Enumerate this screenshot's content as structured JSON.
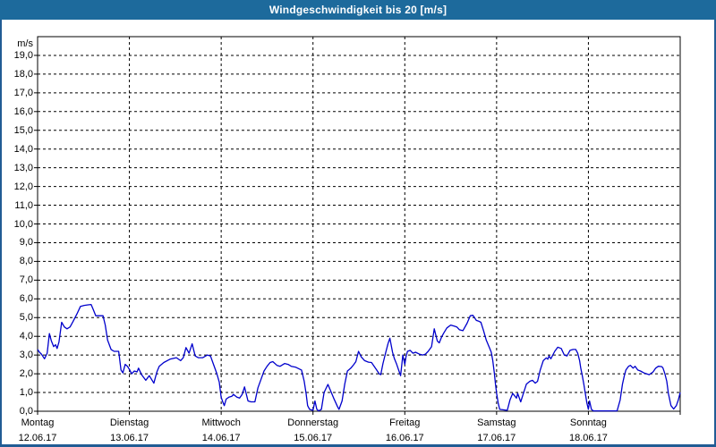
{
  "window": {
    "title": "Windgeschwindigkeit bis 20 [m/s]"
  },
  "colors": {
    "title_bar_bg": "#1d6a9c",
    "title_text": "#ffffff",
    "frame_border": "#215c94",
    "plot_bg": "#ffffff",
    "plot_border": "#000000",
    "grid": "#000000",
    "tick": "#000000",
    "label_text": "#000000",
    "line": "#0000cc"
  },
  "chart_data": {
    "type": "line",
    "title": "Windgeschwindigkeit bis 20 [m/s]",
    "ylabel": "m/s",
    "ylim": [
      0,
      20
    ],
    "ytick_values": [
      0,
      1,
      2,
      3,
      4,
      5,
      6,
      7,
      8,
      9,
      10,
      11,
      12,
      13,
      14,
      15,
      16,
      17,
      18,
      19
    ],
    "ytick_labels": [
      "0,0",
      "1,0",
      "2,0",
      "3,0",
      "4,0",
      "5,0",
      "6,0",
      "7,0",
      "8,0",
      "9,0",
      "10,0",
      "11,0",
      "12,0",
      "13,0",
      "14,0",
      "15,0",
      "16,0",
      "17,0",
      "18,0",
      "19,0"
    ],
    "xlim_hours": [
      0,
      168
    ],
    "hours_per_day": 24,
    "days": [
      {
        "weekday": "Montag",
        "date": "12.06.17"
      },
      {
        "weekday": "Dienstag",
        "date": "13.06.17"
      },
      {
        "weekday": "Mittwoch",
        "date": "14.06.17"
      },
      {
        "weekday": "Donnerstag",
        "date": "15.06.17"
      },
      {
        "weekday": "Freitag",
        "date": "16.06.17"
      },
      {
        "weekday": "Samstag",
        "date": "17.06.17"
      },
      {
        "weekday": "Sonntag",
        "date": "18.06.17"
      }
    ],
    "grid": {
      "style": "dashed",
      "horizontal_step": 1,
      "vertical": "day-boundaries"
    },
    "legend": "none",
    "series": [
      {
        "name": "Windgeschwindigkeit",
        "unit": "m/s",
        "x_unit": "hours since Montag 00:00",
        "points": [
          [
            0,
            3.3
          ],
          [
            0.5,
            3.15
          ],
          [
            1,
            3.05
          ],
          [
            1.8,
            2.8
          ],
          [
            2.5,
            3.1
          ],
          [
            3.1,
            4.15
          ],
          [
            3.6,
            3.75
          ],
          [
            4.2,
            3.45
          ],
          [
            4.7,
            3.55
          ],
          [
            5.1,
            3.35
          ],
          [
            5.6,
            3.7
          ],
          [
            6.3,
            4.75
          ],
          [
            7,
            4.5
          ],
          [
            7.7,
            4.4
          ],
          [
            8.5,
            4.5
          ],
          [
            9.3,
            4.8
          ],
          [
            10.3,
            5.2
          ],
          [
            11.2,
            5.6
          ],
          [
            12.2,
            5.65
          ],
          [
            13.2,
            5.68
          ],
          [
            14,
            5.7
          ],
          [
            14.5,
            5.45
          ],
          [
            15.2,
            5.1
          ],
          [
            16.2,
            5.1
          ],
          [
            17.1,
            5.1
          ],
          [
            17.7,
            4.6
          ],
          [
            18.3,
            3.8
          ],
          [
            19.2,
            3.3
          ],
          [
            20,
            3.2
          ],
          [
            21.2,
            3.2
          ],
          [
            21.8,
            2.2
          ],
          [
            22.3,
            2.05
          ],
          [
            22.9,
            2.5
          ],
          [
            23.5,
            2.4
          ],
          [
            24.1,
            2.2
          ],
          [
            24.6,
            2.0
          ],
          [
            25.3,
            2.15
          ],
          [
            26,
            2.1
          ],
          [
            26.4,
            2.3
          ],
          [
            27.2,
            1.95
          ],
          [
            28.3,
            1.65
          ],
          [
            29.2,
            1.9
          ],
          [
            30.4,
            1.5
          ],
          [
            31.2,
            2.1
          ],
          [
            31.8,
            2.4
          ],
          [
            33,
            2.6
          ],
          [
            34.6,
            2.78
          ],
          [
            35.5,
            2.82
          ],
          [
            36.3,
            2.86
          ],
          [
            37.4,
            2.7
          ],
          [
            38.1,
            2.86
          ],
          [
            38.8,
            3.4
          ],
          [
            39.6,
            3.1
          ],
          [
            40.4,
            3.6
          ],
          [
            41.2,
            2.95
          ],
          [
            42,
            2.86
          ],
          [
            43.2,
            2.86
          ],
          [
            44.4,
            3.0
          ],
          [
            45.2,
            2.95
          ],
          [
            45.9,
            2.55
          ],
          [
            46.8,
            2.05
          ],
          [
            47.5,
            1.55
          ],
          [
            48,
            0.75
          ],
          [
            48.4,
            0.5
          ],
          [
            48.8,
            0.3
          ],
          [
            49.3,
            0.65
          ],
          [
            50,
            0.75
          ],
          [
            50.8,
            0.8
          ],
          [
            51.2,
            0.9
          ],
          [
            52.1,
            0.75
          ],
          [
            52.8,
            0.7
          ],
          [
            53.5,
            0.9
          ],
          [
            54.1,
            1.3
          ],
          [
            55,
            0.55
          ],
          [
            55.8,
            0.5
          ],
          [
            56.8,
            0.5
          ],
          [
            57.6,
            1.25
          ],
          [
            58.5,
            1.75
          ],
          [
            59.2,
            2.15
          ],
          [
            60,
            2.4
          ],
          [
            60.8,
            2.6
          ],
          [
            61.5,
            2.65
          ],
          [
            62.6,
            2.45
          ],
          [
            63.4,
            2.4
          ],
          [
            64.6,
            2.55
          ],
          [
            65.5,
            2.5
          ],
          [
            66.3,
            2.4
          ],
          [
            67.5,
            2.35
          ],
          [
            69,
            2.2
          ],
          [
            69.7,
            1.6
          ],
          [
            70.2,
            0.95
          ],
          [
            70.6,
            0.3
          ],
          [
            71.1,
            0.1
          ],
          [
            72,
            0.05
          ],
          [
            72.5,
            0.55
          ],
          [
            73,
            0.1
          ],
          [
            73.5,
            0.02
          ],
          [
            74.2,
            0.1
          ],
          [
            74.9,
            1.0
          ],
          [
            75.9,
            1.43
          ],
          [
            77.4,
            0.7
          ],
          [
            78.4,
            0.25
          ],
          [
            78.8,
            0.1
          ],
          [
            79.6,
            0.55
          ],
          [
            80.3,
            1.45
          ],
          [
            81,
            2.15
          ],
          [
            81.9,
            2.3
          ],
          [
            82.7,
            2.5
          ],
          [
            83.2,
            2.65
          ],
          [
            83.9,
            3.2
          ],
          [
            84.6,
            2.9
          ],
          [
            85.5,
            2.7
          ],
          [
            86.5,
            2.62
          ],
          [
            87.3,
            2.6
          ],
          [
            88.5,
            2.25
          ],
          [
            89.3,
            2.0
          ],
          [
            89.7,
            1.95
          ],
          [
            90.3,
            2.55
          ],
          [
            90.9,
            3.05
          ],
          [
            91.6,
            3.6
          ],
          [
            92.1,
            3.9
          ],
          [
            92.8,
            3.15
          ],
          [
            93.3,
            2.8
          ],
          [
            93.8,
            2.55
          ],
          [
            94.4,
            2.2
          ],
          [
            94.9,
            1.9
          ],
          [
            95.5,
            3.0
          ],
          [
            96,
            2.5
          ],
          [
            96.3,
            2.9
          ],
          [
            96.7,
            3.2
          ],
          [
            97.4,
            3.25
          ],
          [
            98.1,
            3.1
          ],
          [
            98.8,
            3.15
          ],
          [
            99.8,
            3.05
          ],
          [
            100.7,
            3.0
          ],
          [
            101.4,
            3.05
          ],
          [
            102.1,
            3.2
          ],
          [
            103,
            3.45
          ],
          [
            103.7,
            4.4
          ],
          [
            104.5,
            3.75
          ],
          [
            105,
            3.65
          ],
          [
            105.6,
            3.95
          ],
          [
            106.1,
            4.15
          ],
          [
            107,
            4.45
          ],
          [
            108,
            4.6
          ],
          [
            108.9,
            4.55
          ],
          [
            109.6,
            4.5
          ],
          [
            110.3,
            4.35
          ],
          [
            111.2,
            4.3
          ],
          [
            112.3,
            4.7
          ],
          [
            113.1,
            5.1
          ],
          [
            113.8,
            5.12
          ],
          [
            114.7,
            4.85
          ],
          [
            115.4,
            4.8
          ],
          [
            115.9,
            4.75
          ],
          [
            116.6,
            4.3
          ],
          [
            117.3,
            3.8
          ],
          [
            118.2,
            3.35
          ],
          [
            118.6,
            3.15
          ],
          [
            119,
            2.7
          ],
          [
            119.4,
            2.05
          ],
          [
            119.7,
            1.45
          ],
          [
            120,
            0.95
          ],
          [
            120.4,
            0.45
          ],
          [
            120.8,
            0.1
          ],
          [
            122.8,
            0.05
          ],
          [
            123.5,
            0.6
          ],
          [
            124.2,
            0.95
          ],
          [
            125.2,
            0.7
          ],
          [
            125.5,
            0.95
          ],
          [
            126.3,
            0.5
          ],
          [
            127,
            0.95
          ],
          [
            127.8,
            1.45
          ],
          [
            128.7,
            1.6
          ],
          [
            129.4,
            1.65
          ],
          [
            130.1,
            1.5
          ],
          [
            130.7,
            1.6
          ],
          [
            131.4,
            2.2
          ],
          [
            132.2,
            2.7
          ],
          [
            133,
            2.85
          ],
          [
            133.4,
            2.78
          ],
          [
            133.7,
            2.95
          ],
          [
            134.2,
            2.8
          ],
          [
            135.2,
            3.2
          ],
          [
            136,
            3.42
          ],
          [
            136.9,
            3.35
          ],
          [
            137.7,
            3.0
          ],
          [
            138.4,
            2.95
          ],
          [
            139.2,
            3.25
          ],
          [
            140,
            3.3
          ],
          [
            140.7,
            3.3
          ],
          [
            141.2,
            3.1
          ],
          [
            141.7,
            2.7
          ],
          [
            142,
            2.3
          ],
          [
            142.4,
            1.9
          ],
          [
            142.8,
            1.45
          ],
          [
            143.2,
            0.95
          ],
          [
            143.6,
            0.45
          ],
          [
            144,
            0.1
          ],
          [
            144.3,
            0.55
          ],
          [
            144.8,
            0.1
          ],
          [
            145.3,
            0.02
          ],
          [
            151.5,
            0.02
          ],
          [
            152.3,
            0.6
          ],
          [
            152.9,
            1.45
          ],
          [
            153.4,
            1.9
          ],
          [
            153.8,
            2.2
          ],
          [
            154.5,
            2.4
          ],
          [
            155,
            2.45
          ],
          [
            155.7,
            2.3
          ],
          [
            156.2,
            2.4
          ],
          [
            156.9,
            2.2
          ],
          [
            157.6,
            2.15
          ],
          [
            158.5,
            2.05
          ],
          [
            159.2,
            2.0
          ],
          [
            159.9,
            1.95
          ],
          [
            160.9,
            2.1
          ],
          [
            161.6,
            2.3
          ],
          [
            162.3,
            2.4
          ],
          [
            163.2,
            2.38
          ],
          [
            163.5,
            2.3
          ],
          [
            164,
            2.0
          ],
          [
            164.5,
            1.6
          ],
          [
            164.9,
            0.95
          ],
          [
            165.6,
            0.3
          ],
          [
            166.3,
            0.12
          ],
          [
            167,
            0.3
          ],
          [
            167.5,
            0.6
          ],
          [
            168,
            1.0
          ]
        ]
      }
    ]
  }
}
